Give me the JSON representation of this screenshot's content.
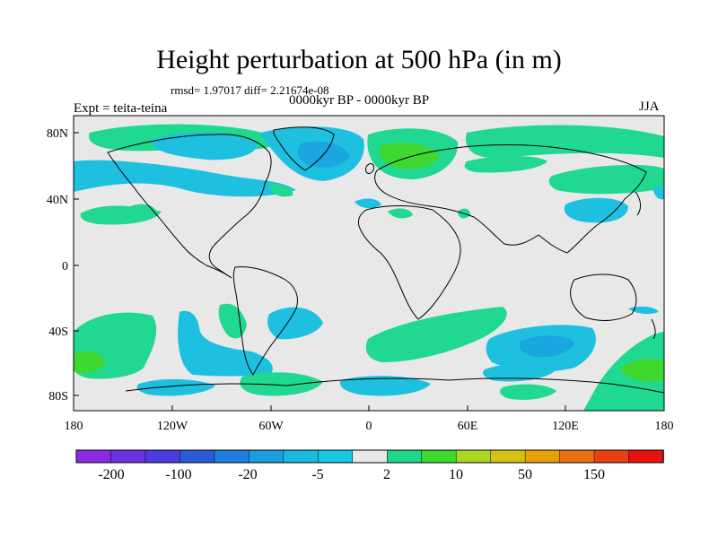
{
  "title": "Height perturbation at 500 hPa (in m)",
  "stats": "rmsd= 1.97017 diff= 2.21674e-08",
  "period": "0000kyr BP - 0000kyr BP",
  "experiment": "Expt = teita-teina",
  "season": "JJA",
  "axes": {
    "lat_labels": [
      "80N",
      "40N",
      "0",
      "40S",
      "80S"
    ],
    "lon_labels": [
      "180",
      "120W",
      "60W",
      "0",
      "60E",
      "120E",
      "180"
    ]
  },
  "colorbar": {
    "labels": [
      "-200",
      "-100",
      "-20",
      "-5",
      "2",
      "10",
      "50",
      "150"
    ],
    "colors": [
      "#8a2be2",
      "#6a32e0",
      "#4b3be0",
      "#2a5bd8",
      "#1e7fe0",
      "#1aa0e0",
      "#19b9e0",
      "#16c8e0",
      "#e8e8e8",
      "#1ed88a",
      "#3ed830",
      "#a8d820",
      "#d8c010",
      "#e8a008",
      "#e87010",
      "#e84010",
      "#e81010"
    ]
  },
  "legend_colors": {
    "light_blue": "#1ec0e0",
    "mid_blue": "#1aa6e0",
    "green": "#20d890",
    "bright_green": "#40d830",
    "neutral": "#e8e8e8"
  }
}
